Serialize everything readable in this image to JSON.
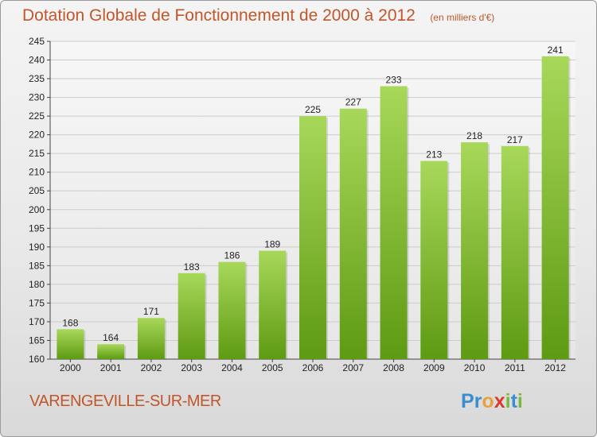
{
  "header": {
    "title": "Dotation Globale de Fonctionnement de 2000 à 2012",
    "unit": "(en milliers d'€)"
  },
  "footer": {
    "city": "VARENGEVILLE-SUR-MER",
    "logo_letters": [
      "P",
      "r",
      "o",
      "x",
      "i",
      "t",
      "i"
    ],
    "logo_colors": [
      "#3a8ed0",
      "#3a8ed0",
      "#e8a13a",
      "#d93a2a",
      "#79b83b",
      "#3a8ed0",
      "#79b83b"
    ]
  },
  "colors": {
    "title": "#c0562a",
    "bar_light": "#a8d85a",
    "bar_dark": "#5e9a12",
    "grid": "#cccccc"
  },
  "chart_data": {
    "type": "bar",
    "title": "Dotation Globale de Fonctionnement de 2000 à 2012",
    "unit": "(en milliers d'€)",
    "categories": [
      "2000",
      "2001",
      "2002",
      "2003",
      "2004",
      "2005",
      "2006",
      "2007",
      "2008",
      "2009",
      "2010",
      "2011",
      "2012"
    ],
    "values": [
      168,
      164,
      171,
      183,
      186,
      189,
      225,
      227,
      233,
      213,
      218,
      217,
      241
    ],
    "ylim": [
      160,
      245
    ],
    "yticks": [
      160,
      165,
      170,
      175,
      180,
      185,
      190,
      195,
      200,
      205,
      210,
      215,
      220,
      225,
      230,
      235,
      240,
      245
    ],
    "grid": true,
    "data_labels": true
  }
}
